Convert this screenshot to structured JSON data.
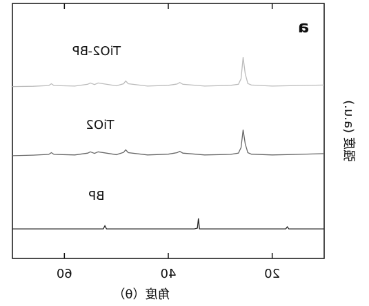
{
  "chart_data": {
    "type": "line",
    "title": "a",
    "x_label": "角度（θ）",
    "y_label": "强度 (a.u.)",
    "xlim": [
      10,
      70
    ],
    "xticks": [
      20,
      40,
      60
    ],
    "ylim": [
      0,
      100
    ],
    "mirrored": true,
    "series": [
      {
        "name": "BP",
        "color": "#222222",
        "x": [
          10,
          16.8,
          17.1,
          17.4,
          20,
          33,
          34.0,
          34.2,
          34.4,
          35,
          45,
          51.9,
          52.2,
          52.5,
          55,
          70
        ],
        "values": [
          11.6,
          11.6,
          12.4,
          11.6,
          11.6,
          11.6,
          11.6,
          15.7,
          11.9,
          11.6,
          11.6,
          11.6,
          12.8,
          11.6,
          11.6,
          11.6
        ]
      },
      {
        "name": "TiO2",
        "color": "#666666",
        "x": [
          10,
          15,
          20,
          24,
          24.7,
          25.2,
          25.6,
          26,
          26.5,
          28,
          33,
          37.2,
          37.8,
          38.3,
          40,
          44,
          47.7,
          48.2,
          48.6,
          50,
          53.5,
          54.2,
          55,
          55.5,
          58,
          62,
          62.5,
          63,
          66,
          70
        ],
        "values": [
          41.1,
          40.8,
          40.6,
          40.9,
          41.5,
          45.0,
          50.5,
          43.5,
          41.3,
          40.8,
          40.6,
          41.3,
          42.0,
          41.5,
          40.9,
          40.6,
          41.5,
          42.6,
          41.6,
          40.7,
          41.8,
          41.2,
          41.8,
          41.3,
          40.6,
          40.8,
          41.5,
          40.8,
          40.5,
          40.3
        ]
      },
      {
        "name": "TiO2-BP",
        "color": "#bbbbbb",
        "x": [
          10,
          15,
          20,
          24,
          24.7,
          25.2,
          25.6,
          26,
          26.5,
          28,
          33,
          37.2,
          37.8,
          38.3,
          40,
          44,
          47.7,
          48.2,
          48.6,
          50,
          53.5,
          54.2,
          55,
          55.5,
          58,
          62,
          62.5,
          63,
          66,
          70
        ],
        "values": [
          68.0,
          67.8,
          67.6,
          68.0,
          68.6,
          72.5,
          78.9,
          70.5,
          68.3,
          67.9,
          67.6,
          68.3,
          69.0,
          68.4,
          67.9,
          67.6,
          68.5,
          69.6,
          68.5,
          67.7,
          68.8,
          68.2,
          68.8,
          68.3,
          67.6,
          67.8,
          68.5,
          67.8,
          67.5,
          67.4
        ]
      }
    ]
  }
}
